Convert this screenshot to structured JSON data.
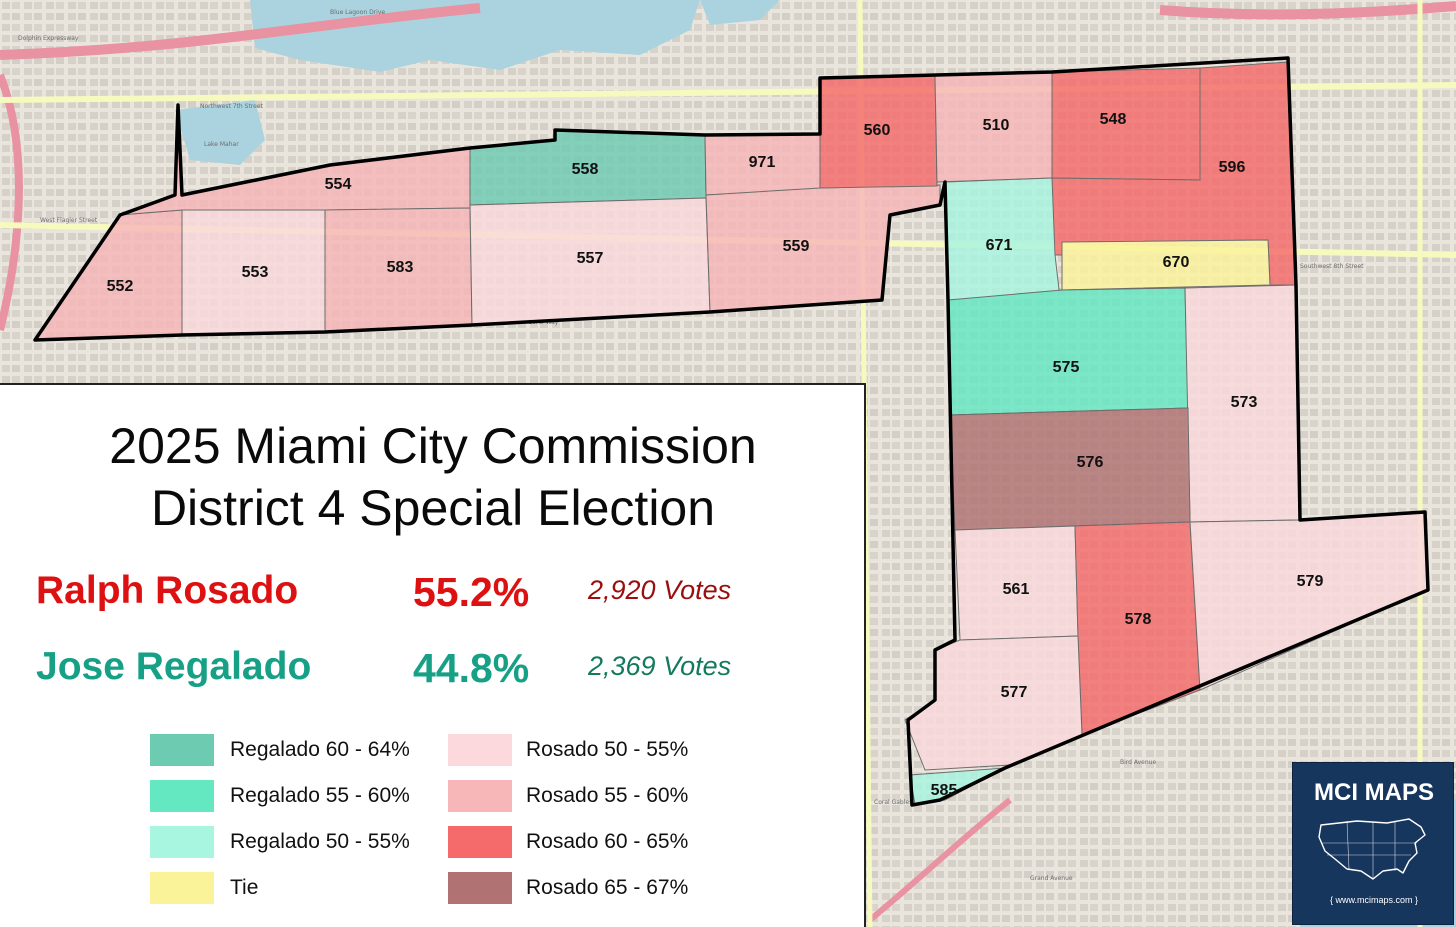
{
  "map": {
    "streets": [
      "Northwest 7th Street",
      "West Flagler Street",
      "Southwest 8th Street",
      "Coral Way",
      "Bird Avenue",
      "Grand Avenue",
      "Dolphin Expressway",
      "Blue Lagoon Drive",
      "Coral Gables",
      "Lake Mahar"
    ],
    "precincts": [
      {
        "id": "552",
        "bin": "rosado_55_60"
      },
      {
        "id": "553",
        "bin": "rosado_50_55"
      },
      {
        "id": "554",
        "bin": "rosado_55_60"
      },
      {
        "id": "557",
        "bin": "rosado_50_55"
      },
      {
        "id": "558",
        "bin": "regalado_60_64"
      },
      {
        "id": "559",
        "bin": "rosado_55_60"
      },
      {
        "id": "560",
        "bin": "rosado_60_65"
      },
      {
        "id": "561",
        "bin": "rosado_50_55"
      },
      {
        "id": "573",
        "bin": "rosado_50_55"
      },
      {
        "id": "575",
        "bin": "regalado_55_60"
      },
      {
        "id": "576",
        "bin": "rosado_65_67"
      },
      {
        "id": "577",
        "bin": "rosado_50_55"
      },
      {
        "id": "578",
        "bin": "rosado_60_65"
      },
      {
        "id": "579",
        "bin": "rosado_50_55"
      },
      {
        "id": "583",
        "bin": "rosado_55_60"
      },
      {
        "id": "585",
        "bin": "regalado_50_55"
      },
      {
        "id": "596",
        "bin": "rosado_60_65"
      },
      {
        "id": "670",
        "bin": "tie"
      },
      {
        "id": "671",
        "bin": "regalado_50_55"
      },
      {
        "id": "971",
        "bin": "rosado_55_60"
      },
      {
        "id": "510",
        "bin": "rosado_55_60"
      },
      {
        "id": "548",
        "bin": "rosado_60_65"
      }
    ]
  },
  "title": {
    "line1": "2025 Miami City Commission",
    "line2": "District 4 Special Election"
  },
  "candidates": [
    {
      "name": "Ralph Rosado",
      "pct": "55.2%",
      "votes": "2,920  Votes",
      "color": "#dd1111"
    },
    {
      "name": "Jose Regalado",
      "pct": "44.8%",
      "votes": "2,369  Votes",
      "color": "#16a085"
    }
  ],
  "legend": {
    "items": [
      {
        "key": "regalado_60_64",
        "label": "Regalado 60 - 64%",
        "color": "#6dcbb2"
      },
      {
        "key": "regalado_55_60",
        "label": "Regalado 55 - 60%",
        "color": "#63e8c2"
      },
      {
        "key": "regalado_50_55",
        "label": "Regalado 50 - 55%",
        "color": "#a8f5e0"
      },
      {
        "key": "tie",
        "label": "Tie",
        "color": "#fbf39a"
      },
      {
        "key": "rosado_50_55",
        "label": "Rosado 50 - 55%",
        "color": "#fbd9dc"
      },
      {
        "key": "rosado_55_60",
        "label": "Rosado 55 - 60%",
        "color": "#f7b6b8"
      },
      {
        "key": "rosado_60_65",
        "label": "Rosado 60 - 65%",
        "color": "#f56a6a"
      },
      {
        "key": "rosado_65_67",
        "label": "Rosado 65 - 67%",
        "color": "#b07272"
      }
    ]
  },
  "badge": {
    "title": "MCI MAPS",
    "url": "{ www.mcimaps.com }"
  }
}
